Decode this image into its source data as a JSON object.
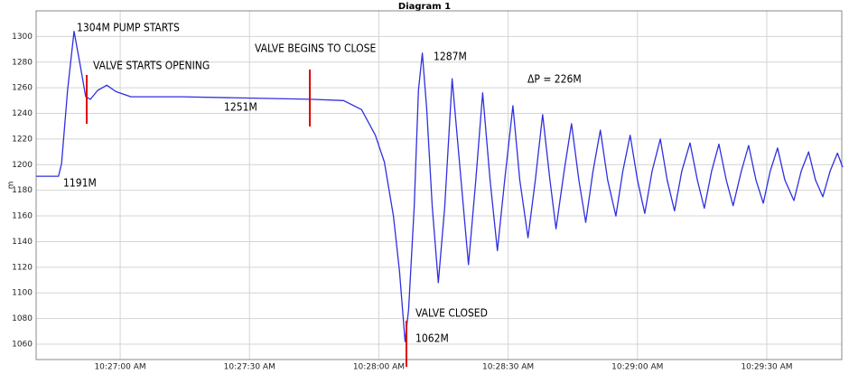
{
  "chart_data": {
    "type": "line",
    "title": "Diagram 1",
    "y_label": "m",
    "x": [
      "10:26:40.5",
      "10:26:45.7",
      "10:26:46.4",
      "10:26:47.8",
      "10:26:49.3",
      "10:26:50.6",
      "10:26:52.0",
      "10:26:53.1",
      "10:26:54.8",
      "10:26:56.9",
      "10:26:59.0",
      "10:27:02.5",
      "10:27:14.1",
      "10:27:44.1",
      "10:27:51.8",
      "10:27:56.0",
      "10:27:59.2",
      "10:28:01.3",
      "10:28:03.4",
      "10:28:04.8",
      "10:28:06.1",
      "10:28:06.9",
      "10:28:08.2",
      "10:28:09.2",
      "10:28:10.1",
      "10:28:11.1",
      "10:28:12.4",
      "10:28:13.8",
      "10:28:15.3",
      "10:28:17.0",
      "10:28:18.7",
      "10:28:20.8",
      "10:28:22.5",
      "10:28:24.1",
      "10:28:25.8",
      "10:28:27.5",
      "10:28:29.2",
      "10:28:31.1",
      "10:28:32.7",
      "10:28:34.6",
      "10:28:36.3",
      "10:28:38.0",
      "10:28:39.7",
      "10:28:41.1",
      "10:28:43.0",
      "10:28:44.7",
      "10:28:46.4",
      "10:28:48.0",
      "10:28:49.7",
      "10:28:51.4",
      "10:28:53.1",
      "10:28:55.0",
      "10:28:56.6",
      "10:28:58.3",
      "10:29:00.0",
      "10:29:01.7",
      "10:29:03.4",
      "10:29:05.3",
      "10:29:06.9",
      "10:29:08.6",
      "10:29:10.3",
      "10:29:12.2",
      "10:29:13.9",
      "10:29:15.5",
      "10:29:17.2",
      "10:29:18.9",
      "10:29:20.6",
      "10:29:22.2",
      "10:29:24.1",
      "10:29:25.8",
      "10:29:27.5",
      "10:29:29.2",
      "10:29:30.8",
      "10:29:32.5",
      "10:29:34.2",
      "10:29:36.3",
      "10:29:38.0",
      "10:29:39.7",
      "10:29:41.3",
      "10:29:43.0",
      "10:29:44.7",
      "10:29:46.4",
      "10:29:47.6"
    ],
    "series": [
      {
        "color": "#2f2fe0",
        "values": [
          1191,
          1191,
          1201,
          1258,
          1304,
          1280,
          1253,
          1251,
          1258,
          1262,
          1257,
          1253,
          1253,
          1251,
          1250,
          1243,
          1223,
          1202,
          1160,
          1117,
          1062,
          1087,
          1167,
          1258,
          1287,
          1244,
          1167,
          1108,
          1167,
          1267,
          1202,
          1122,
          1188,
          1256,
          1188,
          1133,
          1188,
          1246,
          1188,
          1143,
          1188,
          1239,
          1188,
          1150,
          1195,
          1232,
          1188,
          1155,
          1195,
          1227,
          1188,
          1160,
          1195,
          1223,
          1188,
          1162,
          1195,
          1220,
          1188,
          1164,
          1195,
          1217,
          1188,
          1166,
          1195,
          1216,
          1188,
          1168,
          1195,
          1215,
          1188,
          1170,
          1195,
          1213,
          1188,
          1172,
          1195,
          1210,
          1188,
          1175,
          1195,
          1209,
          1198
        ]
      }
    ],
    "xlim": [
      "10:26:40.5",
      "10:29:47.4"
    ],
    "xticks": [
      {
        "value": "10:27:00",
        "label": "10:27:00 AM"
      },
      {
        "value": "10:27:30",
        "label": "10:27:30 AM"
      },
      {
        "value": "10:28:00",
        "label": "10:28:00 AM"
      },
      {
        "value": "10:28:30",
        "label": "10:28:30 AM"
      },
      {
        "value": "10:29:00",
        "label": "10:29:00 AM"
      },
      {
        "value": "10:29:30",
        "label": "10:29:30 AM"
      }
    ],
    "ylim": [
      1048,
      1320
    ],
    "yticks": [
      1060,
      1080,
      1100,
      1120,
      1140,
      1160,
      1180,
      1200,
      1220,
      1240,
      1260,
      1280,
      1300
    ],
    "grid": true,
    "annotations": [
      "1304M  PUMP STARTS",
      "VALVE STARTS OPENING",
      "VALVE BEGINS TO CLOSE",
      "1251M",
      "1287M",
      "ΔP = 226M",
      "1191M",
      "VALVE CLOSED",
      "1062M"
    ]
  }
}
